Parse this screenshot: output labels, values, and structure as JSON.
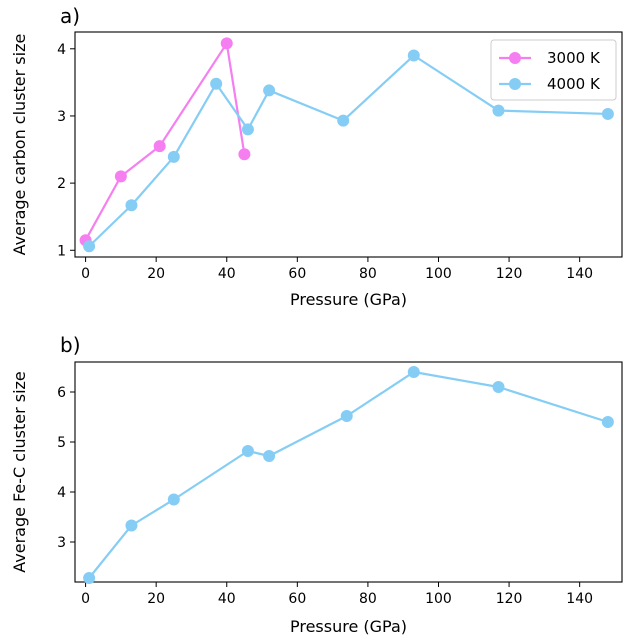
{
  "chart_data": [
    {
      "type": "line",
      "panel_label": "a)",
      "xlabel": "Pressure (GPa)",
      "ylabel": "Average carbon cluster size",
      "xlim": [
        -3,
        152
      ],
      "ylim": [
        0.9,
        4.25
      ],
      "xticks": [
        0,
        20,
        40,
        60,
        80,
        100,
        120,
        140
      ],
      "yticks": [
        1,
        2,
        3,
        4
      ],
      "grid": false,
      "legend_position": "top-right",
      "series": [
        {
          "name": "3000 K",
          "color": "#f57ff0",
          "x": [
            0,
            10,
            21,
            40,
            45
          ],
          "y": [
            1.15,
            2.1,
            2.55,
            4.08,
            2.43
          ]
        },
        {
          "name": "4000 K",
          "color": "#86cdf5",
          "x": [
            1,
            13,
            25,
            37,
            46,
            52,
            73,
            93,
            117,
            148
          ],
          "y": [
            1.06,
            1.67,
            2.39,
            3.48,
            2.8,
            3.38,
            2.93,
            3.9,
            3.08,
            3.03
          ]
        }
      ]
    },
    {
      "type": "line",
      "panel_label": "b)",
      "xlabel": "Pressure (GPa)",
      "ylabel": "Average Fe-C cluster size",
      "xlim": [
        -3,
        152
      ],
      "ylim": [
        2.2,
        6.6
      ],
      "xticks": [
        0,
        20,
        40,
        60,
        80,
        100,
        120,
        140
      ],
      "yticks": [
        3,
        4,
        5,
        6
      ],
      "grid": false,
      "series": [
        {
          "color": "#86cdf5",
          "x": [
            1,
            13,
            25,
            46,
            52,
            74,
            93,
            117,
            148
          ],
          "y": [
            2.28,
            3.33,
            3.85,
            4.82,
            4.72,
            5.52,
            6.4,
            6.1,
            5.4
          ]
        }
      ]
    }
  ]
}
